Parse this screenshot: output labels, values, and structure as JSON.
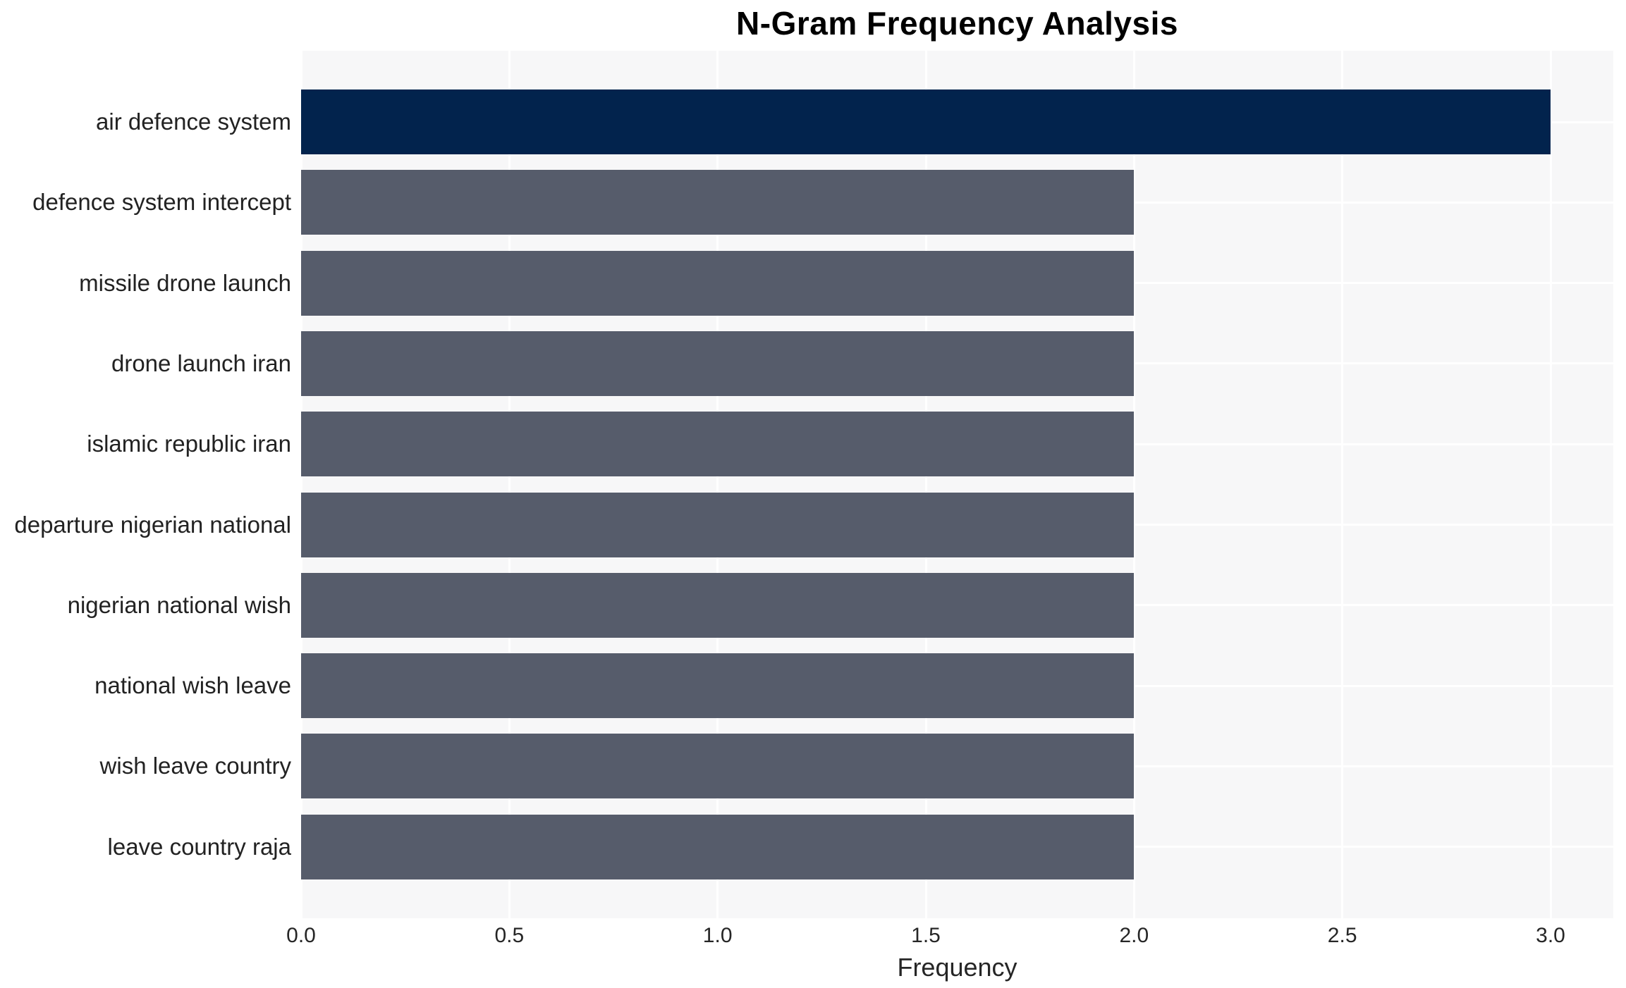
{
  "title": "N-Gram Frequency Analysis",
  "colors": {
    "figure_bg": "#ffffff",
    "plot_bg": "#f7f7f8",
    "grid": "#ffffff",
    "highlight_bar": "#02234d",
    "default_bar": "#565c6b",
    "title_text": "#000000",
    "label_text": "#222222"
  },
  "chart_data": {
    "type": "bar",
    "orientation": "horizontal",
    "title": "N-Gram Frequency Analysis",
    "xlabel": "Frequency",
    "ylabel": "",
    "categories": [
      "air defence system",
      "defence system intercept",
      "missile drone launch",
      "drone launch iran",
      "islamic republic iran",
      "departure nigerian national",
      "nigerian national wish",
      "national wish leave",
      "wish leave country",
      "leave country raja"
    ],
    "values": [
      3,
      2,
      2,
      2,
      2,
      2,
      2,
      2,
      2,
      2
    ],
    "bar_colors": [
      "#02234d",
      "#565c6b",
      "#565c6b",
      "#565c6b",
      "#565c6b",
      "#565c6b",
      "#565c6b",
      "#565c6b",
      "#565c6b",
      "#565c6b"
    ],
    "xlim": [
      0,
      3.15
    ],
    "xtick_labels": [
      "0.0",
      "0.5",
      "1.0",
      "1.5",
      "2.0",
      "2.5",
      "3.0"
    ],
    "xtick_values": [
      0,
      0.5,
      1,
      1.5,
      2,
      2.5,
      3
    ],
    "grid": true,
    "legend": false
  }
}
